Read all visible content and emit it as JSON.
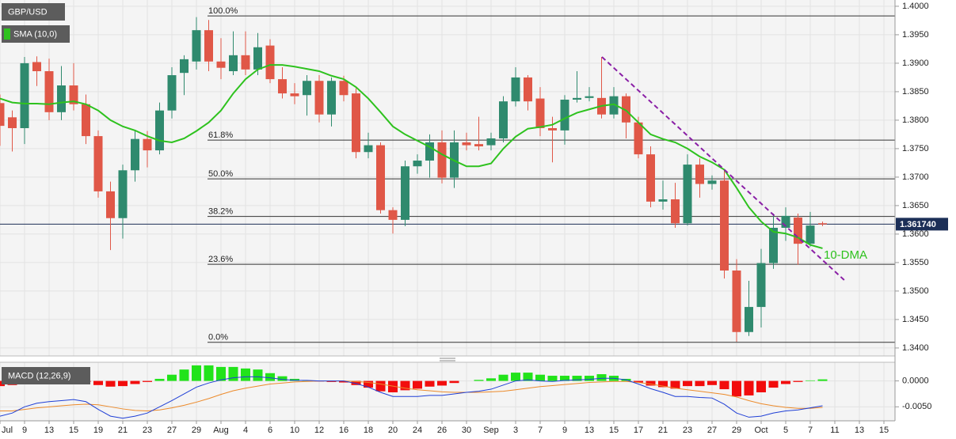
{
  "chart_data": [
    {
      "type": "candlestick",
      "categories": [
        "Jul",
        null,
        "9",
        null,
        "13",
        null,
        "15",
        null,
        "19",
        null,
        "21",
        null,
        "23",
        null,
        "27",
        null,
        "29",
        null,
        "Aug",
        null,
        "4",
        null,
        "6",
        null,
        "10",
        null,
        "12",
        null,
        "16",
        null,
        "18",
        null,
        "20",
        null,
        "24",
        null,
        "26",
        null,
        "30",
        null,
        "Sep",
        null,
        "3",
        null,
        "7",
        null,
        "9",
        null,
        "13",
        null,
        "15",
        null,
        "17",
        null,
        "21",
        null,
        "23",
        null,
        "27",
        null,
        "29",
        null,
        "Oct",
        null,
        "5",
        null,
        "7",
        null,
        "11",
        null,
        "13",
        null,
        "15"
      ],
      "series": [
        {
          "name": "GBP/USD",
          "up_color": "#2f8a6e",
          "down_color": "#e05747",
          "open": [
            1.383,
            1.3805,
            1.3786,
            1.3902,
            1.3886,
            1.3814,
            1.3861,
            1.3828,
            1.3772,
            1.3675,
            1.3628,
            1.3712,
            1.3767,
            1.3747,
            1.3817,
            1.3883,
            1.3903,
            1.3958,
            1.3903,
            1.3886,
            1.3914,
            1.3889,
            1.3931,
            1.3872,
            1.3847,
            1.3844,
            1.3869,
            1.381,
            1.3869,
            1.3847,
            1.3744,
            1.3756,
            1.3642,
            1.3625,
            1.3719,
            1.3729,
            1.3761,
            1.3699,
            1.3761,
            1.3758,
            1.3756,
            1.3768,
            1.3833,
            1.3875,
            1.3838,
            1.3786,
            1.3782,
            1.3836,
            1.3839,
            1.3839,
            1.381,
            1.3842,
            1.3796,
            1.374,
            1.3657,
            1.3661,
            1.3619,
            1.3722,
            1.3688,
            1.3694,
            1.3536,
            1.3428,
            1.3472,
            1.3549,
            1.3611,
            1.3629,
            1.3583,
            1.3619,
            null,
            null,
            null,
            null,
            null
          ],
          "high": [
            1.3845,
            1.3817,
            1.3911,
            1.3912,
            1.3908,
            1.3895,
            1.39,
            1.3845,
            1.3782,
            1.3692,
            1.3722,
            1.3782,
            1.3781,
            1.3831,
            1.3893,
            1.3914,
            1.3981,
            1.3976,
            1.3944,
            1.3956,
            1.3956,
            1.3953,
            1.3942,
            1.3893,
            1.3865,
            1.3879,
            1.3879,
            1.3875,
            1.3878,
            1.3856,
            1.3778,
            1.3761,
            1.3647,
            1.3729,
            1.374,
            1.3775,
            1.3782,
            1.3782,
            1.3778,
            1.3806,
            1.3778,
            1.3842,
            1.3893,
            1.3879,
            1.3858,
            1.3806,
            1.3844,
            1.3886,
            1.3858,
            1.3911,
            1.3858,
            1.3847,
            1.3806,
            1.3754,
            1.3694,
            1.369,
            1.374,
            1.3733,
            1.3703,
            1.3712,
            1.3556,
            1.3518,
            1.3574,
            1.3636,
            1.3647,
            1.3636,
            1.3639,
            1.3622,
            null,
            null,
            null,
            null,
            null
          ],
          "low": [
            1.3755,
            1.3745,
            1.3758,
            1.386,
            1.38,
            1.38,
            1.3817,
            1.3758,
            1.3664,
            1.3572,
            1.3592,
            1.3692,
            1.3717,
            1.374,
            1.3803,
            1.3844,
            1.3889,
            1.3886,
            1.3872,
            1.3879,
            1.3879,
            1.3879,
            1.3865,
            1.3838,
            1.3828,
            1.3808,
            1.3796,
            1.3789,
            1.3833,
            1.3733,
            1.3733,
            1.3636,
            1.3601,
            1.3614,
            1.3706,
            1.3699,
            1.3689,
            1.3681,
            1.3747,
            1.3747,
            1.3747,
            1.3761,
            1.3824,
            1.3817,
            1.3772,
            1.3726,
            1.3757,
            1.3831,
            1.3833,
            1.3803,
            1.3803,
            1.3768,
            1.3733,
            1.3647,
            1.3643,
            1.3611,
            1.3615,
            1.3664,
            1.3678,
            1.3522,
            1.3411,
            1.3421,
            1.3436,
            1.3539,
            1.3588,
            1.3546,
            1.3578,
            1.3614,
            null,
            null,
            null,
            null,
            null
          ],
          "close": [
            1.379,
            1.3786,
            1.39,
            1.3886,
            1.3814,
            1.3861,
            1.3828,
            1.3772,
            1.3675,
            1.3628,
            1.3712,
            1.3767,
            1.3747,
            1.3817,
            1.3879,
            1.3907,
            1.3958,
            1.3903,
            1.3892,
            1.3914,
            1.3889,
            1.3928,
            1.3872,
            1.3847,
            1.3842,
            1.3869,
            1.381,
            1.3869,
            1.3844,
            1.3744,
            1.3756,
            1.3642,
            1.3625,
            1.3719,
            1.3729,
            1.3761,
            1.3699,
            1.3761,
            1.3756,
            1.3754,
            1.3768,
            1.3833,
            1.3875,
            1.3833,
            1.3786,
            1.3782,
            1.3836,
            1.3839,
            1.3842,
            1.381,
            1.3842,
            1.3796,
            1.374,
            1.3657,
            1.3661,
            1.3619,
            1.3722,
            1.3688,
            1.3694,
            1.3536,
            1.3428,
            1.3472,
            1.3549,
            1.3611,
            1.3632,
            1.3583,
            1.3615,
            1.3617,
            null,
            null,
            null,
            null,
            null
          ]
        },
        {
          "name": "SMA (10,0)",
          "type": "line",
          "color": "#2ec21e",
          "values": [
            1.3838,
            1.3831,
            1.3829,
            1.3829,
            1.3828,
            1.3831,
            1.3833,
            1.3828,
            1.3817,
            1.38,
            1.3789,
            1.3782,
            1.3772,
            1.3764,
            1.3761,
            1.3768,
            1.3781,
            1.3796,
            1.3817,
            1.3847,
            1.3872,
            1.3889,
            1.3897,
            1.3897,
            1.3894,
            1.389,
            1.3886,
            1.3878,
            1.3872,
            1.3858,
            1.3838,
            1.3814,
            1.3789,
            1.3775,
            1.3764,
            1.3753,
            1.374,
            1.3729,
            1.3719,
            1.3719,
            1.3724,
            1.375,
            1.3771,
            1.3785,
            1.3788,
            1.3792,
            1.3803,
            1.3813,
            1.3819,
            1.3825,
            1.3828,
            1.3817,
            1.3796,
            1.3775,
            1.3767,
            1.3761,
            1.375,
            1.3736,
            1.3726,
            1.3713,
            1.3681,
            1.3647,
            1.3622,
            1.3604,
            1.3601,
            1.3594,
            1.3581,
            1.3575,
            null,
            null,
            null,
            null,
            null
          ]
        }
      ],
      "ylim": [
        1.3386,
        1.4011
      ],
      "yticks": [
        {
          "value": 1.4,
          "label": "1.4000"
        },
        {
          "value": 1.395,
          "label": "1.3950"
        },
        {
          "value": 1.39,
          "label": "1.3900"
        },
        {
          "value": 1.385,
          "label": "1.3850"
        },
        {
          "value": 1.38,
          "label": "1.3800"
        },
        {
          "value": 1.375,
          "label": "1.3750"
        },
        {
          "value": 1.37,
          "label": "1.3700"
        },
        {
          "value": 1.365,
          "label": "1.3650"
        },
        {
          "value": 1.36,
          "label": "1.3600"
        },
        {
          "value": 1.355,
          "label": "1.3550"
        },
        {
          "value": 1.35,
          "label": "1.3500"
        },
        {
          "value": 1.345,
          "label": "1.3450"
        },
        {
          "value": 1.34,
          "label": "1.3400"
        }
      ],
      "grid": true,
      "last_price": {
        "value": 1.36174,
        "label": "1.361740",
        "color": "#1c2f57"
      },
      "fib_levels": [
        {
          "value": 1.3983,
          "label": "100.0%"
        },
        {
          "value": 1.3765,
          "label": "61.8%"
        },
        {
          "value": 1.3697,
          "label": "50.0%"
        },
        {
          "value": 1.3631,
          "label": "38.2%"
        },
        {
          "value": 1.3547,
          "label": "23.6%"
        },
        {
          "value": 1.341,
          "label": "0.0%"
        }
      ],
      "annotations": [
        {
          "text": "10-DMA",
          "color": "#2ec21e"
        }
      ]
    },
    {
      "type": "macd",
      "name": "MACD (12,26,9)",
      "histogram": {
        "up_color": "#22e31a",
        "down_color": "#f20d0d",
        "values": [
          -0.001,
          -0.0008,
          -0.0002,
          0.0002,
          0.0001,
          0.0,
          0.0,
          -0.0002,
          -0.0008,
          -0.0011,
          -0.001,
          -0.0006,
          -0.0002,
          0.0004,
          0.0012,
          0.0022,
          0.003,
          0.003,
          0.0027,
          0.0027,
          0.0024,
          0.0022,
          0.0015,
          0.0009,
          0.0004,
          0.0001,
          -0.0001,
          -0.0002,
          -0.0003,
          -0.0008,
          -0.0013,
          -0.002,
          -0.0022,
          -0.0018,
          -0.0015,
          -0.0011,
          -0.0009,
          -0.0004,
          0.0,
          0.0002,
          0.0005,
          0.0012,
          0.0016,
          0.0016,
          0.0012,
          0.001,
          0.001,
          0.001,
          0.001,
          0.0013,
          0.001,
          0.0004,
          -0.0003,
          -0.0009,
          -0.0012,
          -0.0015,
          -0.001,
          -0.001,
          -0.0008,
          -0.0016,
          -0.003,
          -0.0028,
          -0.0022,
          -0.0013,
          -0.0006,
          -0.0002,
          0.0001,
          0.0003,
          null,
          null,
          null,
          null,
          null
        ]
      },
      "macd": {
        "color": "#1f3fd6",
        "values": [
          -0.0068,
          -0.0062,
          -0.005,
          -0.0043,
          -0.004,
          -0.0038,
          -0.0036,
          -0.004,
          -0.0055,
          -0.0068,
          -0.0072,
          -0.0068,
          -0.0062,
          -0.005,
          -0.0038,
          -0.0025,
          -0.0012,
          -0.0004,
          0.0002,
          0.0006,
          0.0008,
          0.0008,
          0.0006,
          0.0003,
          0.0001,
          0.0001,
          0.0,
          0.0,
          0.0,
          -0.0005,
          -0.0012,
          -0.0022,
          -0.003,
          -0.003,
          -0.003,
          -0.0028,
          -0.0028,
          -0.0025,
          -0.0022,
          -0.002,
          -0.0016,
          -0.0008,
          0.0,
          0.0002,
          0.0,
          -0.0001,
          0.0001,
          0.0002,
          0.0003,
          0.0005,
          0.0005,
          0.0002,
          -0.0006,
          -0.0015,
          -0.0022,
          -0.003,
          -0.003,
          -0.0032,
          -0.0033,
          -0.0045,
          -0.0062,
          -0.007,
          -0.0068,
          -0.0062,
          -0.0058,
          -0.0056,
          -0.0052,
          -0.0048,
          null,
          null,
          null,
          null,
          null
        ]
      },
      "signal": {
        "color": "#ec8a2a",
        "values": [
          -0.0058,
          -0.0058,
          -0.0055,
          -0.0052,
          -0.005,
          -0.0048,
          -0.0046,
          -0.0045,
          -0.0046,
          -0.005,
          -0.0054,
          -0.0057,
          -0.0058,
          -0.0056,
          -0.0052,
          -0.0047,
          -0.0041,
          -0.0034,
          -0.0026,
          -0.0019,
          -0.0014,
          -0.001,
          -0.0006,
          -0.0004,
          -0.0002,
          -0.0001,
          0.0,
          0.0,
          0.0,
          -0.0001,
          -0.0003,
          -0.0006,
          -0.001,
          -0.0014,
          -0.0017,
          -0.0019,
          -0.0021,
          -0.0022,
          -0.0022,
          -0.0022,
          -0.0021,
          -0.002,
          -0.0017,
          -0.0014,
          -0.0011,
          -0.0009,
          -0.0007,
          -0.0005,
          -0.0003,
          -0.0002,
          -0.0001,
          -0.0001,
          -0.0003,
          -0.0006,
          -0.001,
          -0.0014,
          -0.0017,
          -0.002,
          -0.0023,
          -0.0026,
          -0.0031,
          -0.0038,
          -0.0044,
          -0.0048,
          -0.0051,
          -0.0053,
          -0.0053,
          -0.0051,
          null,
          null,
          null,
          null,
          null
        ]
      },
      "ylim": [
        -0.0077,
        0.0036
      ],
      "yticks": [
        {
          "value": 0,
          "label": "0.0000"
        },
        {
          "value": -0.005,
          "label": "-0.0050"
        }
      ]
    }
  ]
}
